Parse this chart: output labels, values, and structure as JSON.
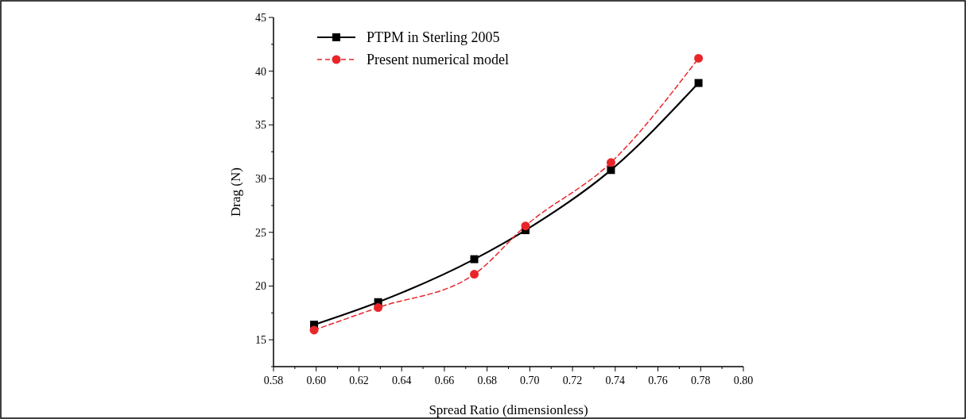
{
  "chart_data": {
    "type": "line",
    "xlabel": "Spread Ratio (dimensionless)",
    "ylabel": "Drag (N)",
    "xlim": [
      0.58,
      0.8
    ],
    "xticks": [
      {
        "value": 0.58,
        "label": "0.58"
      },
      {
        "value": 0.59,
        "label": null
      },
      {
        "value": 0.6,
        "label": "0.60"
      },
      {
        "value": 0.61,
        "label": null
      },
      {
        "value": 0.62,
        "label": "0.62"
      },
      {
        "value": 0.63,
        "label": null
      },
      {
        "value": 0.64,
        "label": "0.64"
      },
      {
        "value": 0.65,
        "label": null
      },
      {
        "value": 0.66,
        "label": "0.66"
      },
      {
        "value": 0.67,
        "label": null
      },
      {
        "value": 0.68,
        "label": "0.68"
      },
      {
        "value": 0.69,
        "label": null
      },
      {
        "value": 0.7,
        "label": "0.70"
      },
      {
        "value": 0.71,
        "label": null
      },
      {
        "value": 0.72,
        "label": "0.72"
      },
      {
        "value": 0.73,
        "label": null
      },
      {
        "value": 0.74,
        "label": "0.74"
      },
      {
        "value": 0.75,
        "label": null
      },
      {
        "value": 0.76,
        "label": "0.76"
      },
      {
        "value": 0.77,
        "label": null
      },
      {
        "value": 0.78,
        "label": "0.78"
      },
      {
        "value": 0.79,
        "label": null
      },
      {
        "value": 0.8,
        "label": "0.80"
      }
    ],
    "ylim": [
      12.5,
      45
    ],
    "yticks": [
      {
        "value": 12.5,
        "label": null
      },
      15,
      {
        "value": 17.5,
        "label": null
      },
      20,
      {
        "value": 22.5,
        "label": null
      },
      25,
      {
        "value": 27.5,
        "label": null
      },
      30,
      {
        "value": 32.5,
        "label": null
      },
      35,
      {
        "value": 37.5,
        "label": null
      },
      40,
      {
        "value": 42.5,
        "label": null
      },
      45
    ],
    "grid": false,
    "legend": "top left",
    "series": [
      {
        "name": "PTPM in Sterling 2005",
        "color": "#000000",
        "marker": "square",
        "line_style": "solid",
        "x": [
          0.599,
          0.629,
          0.674,
          0.698,
          0.738,
          0.779
        ],
        "values": [
          16.4,
          18.5,
          22.5,
          25.2,
          30.8,
          38.9
        ]
      },
      {
        "name": "Present numerical model",
        "color": "#e8262a",
        "marker": "circle",
        "line_style": "dashed",
        "x": [
          0.599,
          0.629,
          0.674,
          0.698,
          0.738,
          0.779
        ],
        "values": [
          15.9,
          18.0,
          21.1,
          25.6,
          31.5,
          41.2
        ]
      }
    ]
  }
}
